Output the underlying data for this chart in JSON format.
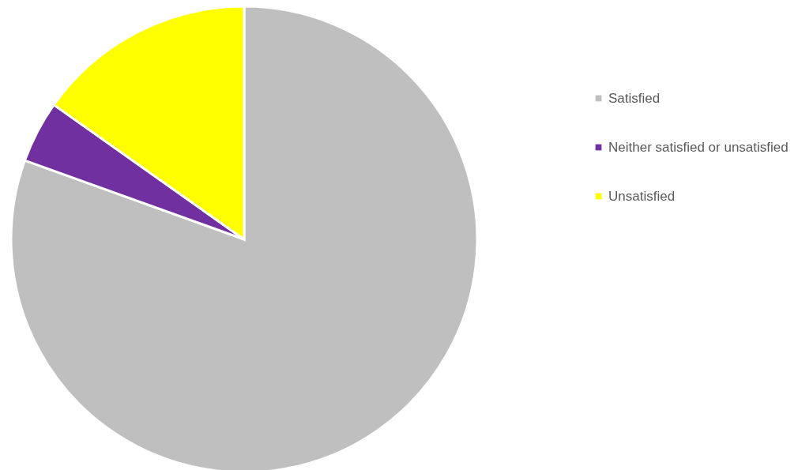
{
  "chart_data": {
    "type": "pie",
    "categories": [
      "Satisfied",
      "Neither satisfied or unsatisfied",
      "Unsatisfied"
    ],
    "values": [
      80.5,
      4.3,
      15.2
    ],
    "colors": [
      "#bfbfbf",
      "#7030a0",
      "#ffff00"
    ],
    "legend": "right"
  }
}
